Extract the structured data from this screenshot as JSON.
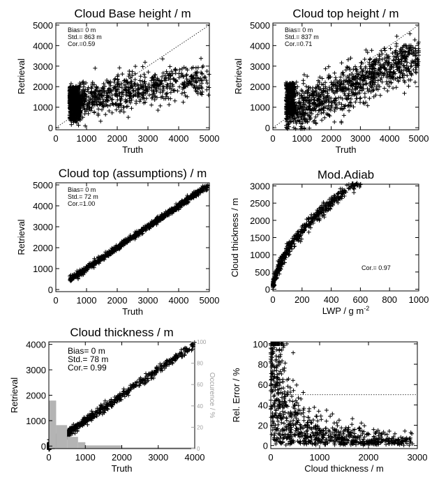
{
  "chart_data": [
    {
      "type": "scatter",
      "title": "Cloud Base height / m",
      "xlabel": "Truth",
      "ylabel": "Retrieval",
      "xlim": [
        0,
        5000
      ],
      "ylim": [
        -100,
        5100
      ],
      "xticks": [
        "0",
        "1000",
        "2000",
        "3000",
        "4000",
        "5000"
      ],
      "yticks": [
        "0",
        "1000",
        "2000",
        "3000",
        "4000",
        "5000"
      ],
      "stats": [
        "Bias=  0 m",
        "Std.= 863 m",
        "Cor.=0.59"
      ],
      "one_to_one_line": true,
      "point_cloud": {
        "x_min": 450,
        "x_max": 5000,
        "center_y": 1400,
        "note_spread": "wide"
      }
    },
    {
      "type": "scatter",
      "title": "Cloud top height / m",
      "xlabel": "Truth",
      "ylabel": "Retrieval",
      "xlim": [
        0,
        5000
      ],
      "ylim": [
        -100,
        5100
      ],
      "xticks": [
        "0",
        "1000",
        "2000",
        "3000",
        "4000",
        "5000"
      ],
      "yticks": [
        "0",
        "1000",
        "2000",
        "3000",
        "4000",
        "5000"
      ],
      "stats": [
        "Bias=  0 m",
        "Std.= 837 m",
        "Cor.=0.71"
      ],
      "one_to_one_line": true
    },
    {
      "type": "scatter",
      "title": "Cloud top (assumptions) / m",
      "xlabel": "Truth",
      "ylabel": "Retrieval",
      "xlim": [
        0,
        5000
      ],
      "ylim": [
        -100,
        5100
      ],
      "xticks": [
        "0",
        "1000",
        "2000",
        "3000",
        "4000",
        "5000"
      ],
      "yticks": [
        "0",
        "1000",
        "2000",
        "3000",
        "4000",
        "5000"
      ],
      "stats": [
        "Bias=  0 m",
        "Std.=  72 m",
        "Cor.=1.00"
      ]
    },
    {
      "type": "scatter",
      "title": "Mod.Adiab",
      "xlabel": "LWP / g m",
      "xlabel_sup": "-2",
      "ylabel": "Cloud thickness / m",
      "xlim": [
        0,
        1000
      ],
      "ylim": [
        -50,
        3050
      ],
      "xticks": [
        "0",
        "200",
        "400",
        "600",
        "800",
        "1000"
      ],
      "yticks": [
        "0",
        "500",
        "1000",
        "1500",
        "2000",
        "2500",
        "3000"
      ],
      "stats": [
        "Cor.= 0.97"
      ]
    },
    {
      "type": "scatter",
      "title": "Cloud thickness / m",
      "xlabel": "Truth",
      "ylabel": "Retrieval",
      "right_ylabel": "Occurence / %",
      "xlim": [
        0,
        4000
      ],
      "ylim": [
        -100,
        4100
      ],
      "xticks": [
        "0",
        "1000",
        "2000",
        "3000",
        "4000"
      ],
      "yticks": [
        "0",
        "1000",
        "2000",
        "3000",
        "4000"
      ],
      "right_yticks": [
        "0",
        "20",
        "40",
        "60",
        "80",
        "100"
      ],
      "stats": [
        "Bias=   0 m",
        "Std.=  78 m",
        "Cor.= 0.99"
      ],
      "histogram": {
        "bin_edges": [
          0,
          200,
          500,
          800,
          1000,
          2000,
          4000
        ],
        "occurrence_percent": [
          45,
          22,
          11,
          6,
          3,
          1
        ]
      }
    },
    {
      "type": "scatter",
      "title": "",
      "xlabel": "Cloud thickness / m",
      "ylabel": "Rel. Error / %",
      "xlim": [
        0,
        3000
      ],
      "ylim": [
        -3,
        102
      ],
      "xticks": [
        "0",
        "1000",
        "2000",
        "3000"
      ],
      "yticks": [
        "0",
        "20",
        "40",
        "60",
        "80",
        "100"
      ],
      "reference_line": {
        "y": 50,
        "x_from": 400,
        "x_to": 3000
      }
    }
  ]
}
